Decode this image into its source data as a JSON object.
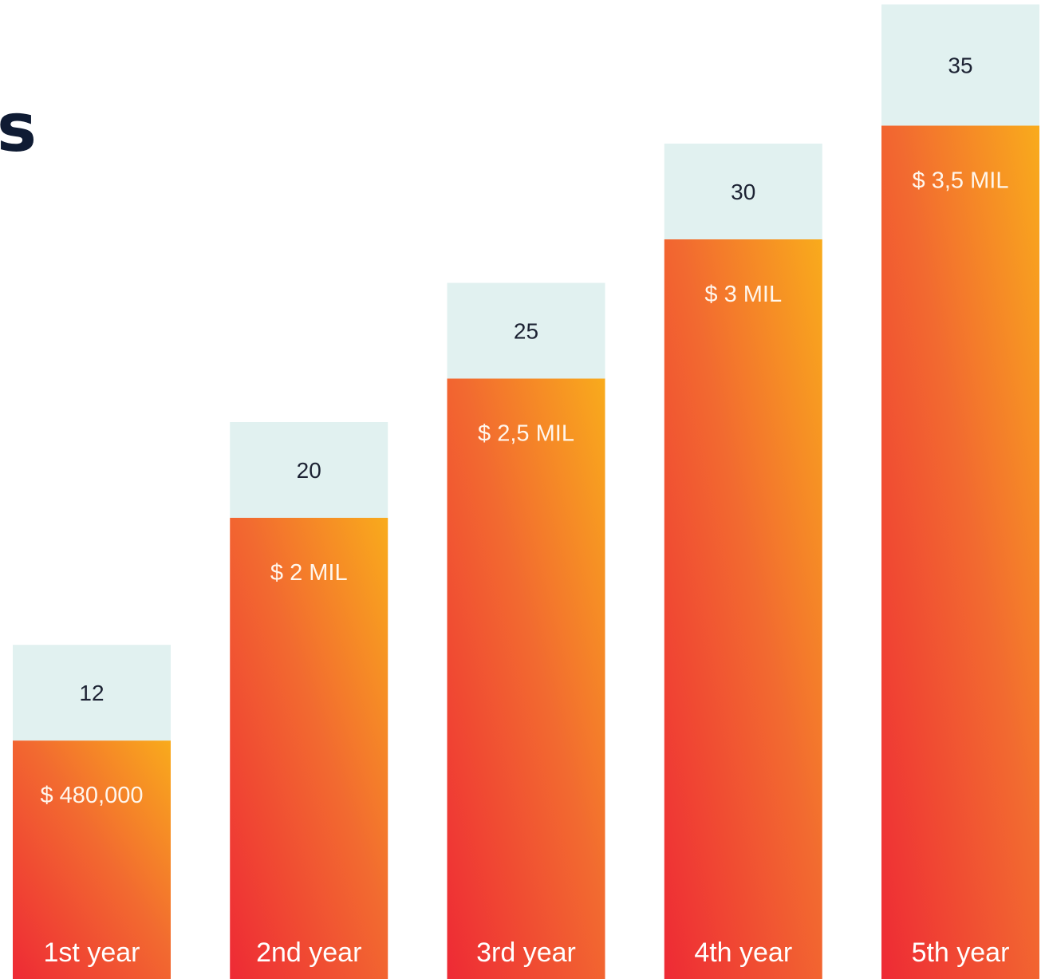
{
  "title": "s",
  "colors": {
    "top_segment": "#e1f1f0",
    "gradient_start": "#ee2a35",
    "gradient_mid": "#f26a30",
    "gradient_end": "#f9ab1c",
    "count_text": "#1c2233",
    "amount_text": "#fff6ec",
    "year_text": "#ffffff",
    "title_text": "#0f1b33"
  },
  "chart_data": {
    "type": "bar",
    "stacked": true,
    "categories": [
      "1st year",
      "2nd year",
      "3rd year",
      "4th year",
      "5th year"
    ],
    "series": [
      {
        "values": [
          480000,
          2000000,
          2500000,
          3000000,
          3500000
        ],
        "labels": [
          "$ 480,000",
          "$ 2 MIL",
          "$ 2,5 MIL",
          "$ 3 MIL",
          "$ 3,5 MIL"
        ]
      },
      {
        "values": [
          12,
          20,
          25,
          30,
          35
        ],
        "labels": [
          "12",
          "20",
          "25",
          "30",
          "35"
        ]
      }
    ],
    "title": "s",
    "xlabel": "",
    "ylabel": "",
    "grid": false,
    "legend": "none"
  }
}
